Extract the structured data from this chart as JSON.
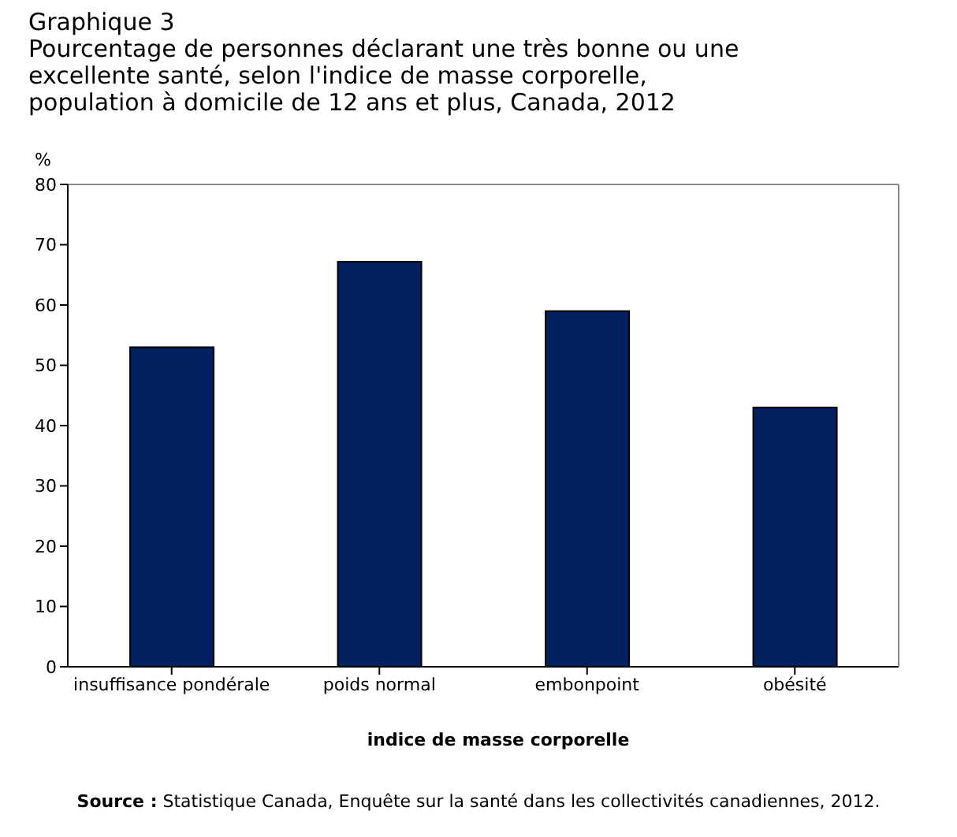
{
  "chart_data": {
    "type": "bar",
    "title": "Graphique 3\nPourcentage de personnes déclarant une très bonne ou une excellente santé, selon l'indice de masse corporelle, population à domicile de 12 ans et plus, Canada, 2012",
    "categories": [
      "insuffisance pondérale",
      "poids normal",
      "embonpoint",
      "obésité"
    ],
    "values": [
      53,
      67.2,
      59,
      43
    ],
    "color": "#002060",
    "ylim": [
      0,
      80
    ],
    "yticks": [
      0,
      10,
      20,
      30,
      40,
      50,
      60,
      70,
      80
    ],
    "grid": false,
    "legend": false,
    "xlabel": "indice de masse corporelle",
    "ylabel": "%",
    "annotations": [
      "Source : Statistique Canada, Enquête sur la santé dans les collectivités canadiennes, 2012."
    ]
  }
}
